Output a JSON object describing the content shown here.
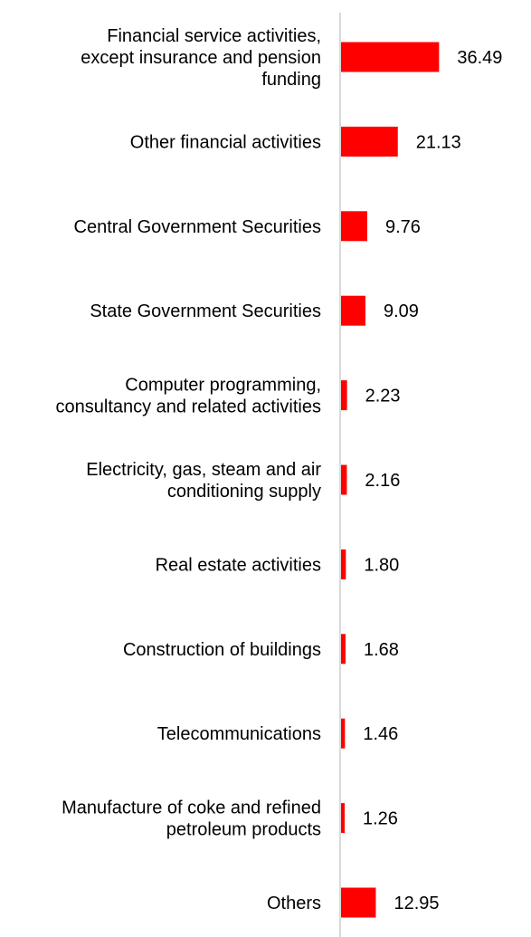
{
  "chart_data": {
    "type": "bar",
    "orientation": "horizontal",
    "title": "",
    "xlabel": "",
    "ylabel": "",
    "grid": false,
    "legend": "none",
    "categories": [
      "Financial service activities, except insurance and pension funding",
      "Other financial activities",
      "Central Government Securities",
      "State Government Securities",
      "Computer programming, consultancy and related activities",
      "Electricity, gas, steam and air conditioning supply",
      "Real estate activities",
      "Construction of buildings",
      "Telecommunications",
      "Manufacture of coke and refined petroleum products",
      "Others"
    ],
    "category_lines": [
      [
        "Financial service activities,",
        "except insurance and pension",
        "funding"
      ],
      [
        "Other financial activities"
      ],
      [
        "Central Government Securities"
      ],
      [
        "State Government Securities"
      ],
      [
        "Computer programming,",
        "consultancy and related activities"
      ],
      [
        "Electricity, gas, steam and air",
        "conditioning supply"
      ],
      [
        "Real estate activities"
      ],
      [
        "Construction of buildings"
      ],
      [
        "Telecommunications"
      ],
      [
        "Manufacture of coke and refined",
        "petroleum products"
      ],
      [
        "Others"
      ]
    ],
    "values": [
      36.49,
      21.13,
      9.76,
      9.09,
      2.23,
      2.16,
      1.8,
      1.68,
      1.46,
      1.26,
      12.95
    ],
    "value_labels": [
      "36.49",
      "21.13",
      "9.76",
      "9.09",
      "2.23",
      "2.16",
      "1.80",
      "1.68",
      "1.46",
      "1.26",
      "12.95"
    ],
    "xlim": [
      0,
      40
    ],
    "colors": {
      "bar": "#ff0000",
      "axis": "#d9d9d9",
      "text": "#000000"
    }
  }
}
